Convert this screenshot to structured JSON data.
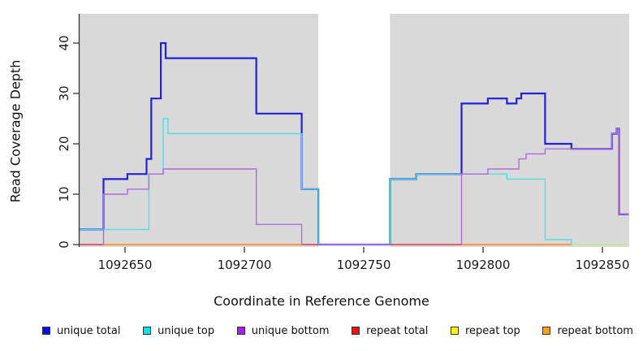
{
  "chart_data": {
    "type": "line",
    "subtype": "step",
    "title": "",
    "xlabel": "Coordinate in Reference Genome",
    "ylabel": "Read Coverage Depth",
    "xlim": [
      1092631,
      1092861
    ],
    "ylim": [
      0,
      45.8
    ],
    "x_ticks": [
      1092650,
      1092700,
      1092750,
      1092800,
      1092850
    ],
    "y_ticks": [
      0,
      10,
      20,
      30,
      40
    ],
    "grid": false,
    "plot_bg": "#d9d9d9",
    "axis_color": "#333333",
    "gap_band": {
      "x0": 1092731,
      "x1": 1092761,
      "color": "#ffffff"
    },
    "series": [
      {
        "name": "unique total",
        "color": "#2222dd",
        "width": 2.2,
        "runs": [
          [
            1092631,
            1092641,
            3
          ],
          [
            1092641,
            1092651,
            13
          ],
          [
            1092651,
            1092659,
            14
          ],
          [
            1092659,
            1092661,
            17
          ],
          [
            1092661,
            1092665,
            29
          ],
          [
            1092665,
            1092667,
            40
          ],
          [
            1092667,
            1092705,
            37
          ],
          [
            1092705,
            1092724,
            26
          ],
          [
            1092724,
            1092731,
            11
          ],
          [
            1092731,
            1092761,
            0
          ],
          [
            1092761,
            1092772,
            13
          ],
          [
            1092772,
            1092791,
            14
          ],
          [
            1092791,
            1092802,
            28
          ],
          [
            1092802,
            1092810,
            29
          ],
          [
            1092810,
            1092814,
            28
          ],
          [
            1092814,
            1092816,
            29
          ],
          [
            1092816,
            1092826,
            30
          ],
          [
            1092826,
            1092837,
            20
          ],
          [
            1092837,
            1092854,
            19
          ],
          [
            1092854,
            1092856,
            22
          ],
          [
            1092856,
            1092857,
            23
          ],
          [
            1092857,
            1092861,
            6
          ]
        ]
      },
      {
        "name": "unique top",
        "color": "#4cdfec",
        "width": 1.4,
        "runs": [
          [
            1092631,
            1092660,
            3
          ],
          [
            1092660,
            1092666,
            14
          ],
          [
            1092666,
            1092668,
            25
          ],
          [
            1092668,
            1092724,
            22
          ],
          [
            1092724,
            1092731,
            11
          ],
          [
            1092731,
            1092761,
            0
          ],
          [
            1092761,
            1092772,
            13
          ],
          [
            1092772,
            1092810,
            14
          ],
          [
            1092810,
            1092826,
            13
          ],
          [
            1092826,
            1092837,
            1
          ],
          [
            1092837,
            1092861,
            0
          ]
        ]
      },
      {
        "name": "unique bottom",
        "color": "#b469e0",
        "width": 1.4,
        "runs": [
          [
            1092631,
            1092641,
            0
          ],
          [
            1092641,
            1092651,
            10
          ],
          [
            1092651,
            1092660,
            11
          ],
          [
            1092660,
            1092666,
            14
          ],
          [
            1092666,
            1092705,
            15
          ],
          [
            1092705,
            1092724,
            4
          ],
          [
            1092724,
            1092791,
            0
          ],
          [
            1092791,
            1092802,
            14
          ],
          [
            1092802,
            1092815,
            15
          ],
          [
            1092815,
            1092818,
            17
          ],
          [
            1092818,
            1092826,
            18
          ],
          [
            1092826,
            1092854,
            19
          ],
          [
            1092854,
            1092856,
            22
          ],
          [
            1092856,
            1092857,
            23
          ],
          [
            1092857,
            1092861,
            6
          ]
        ]
      },
      {
        "name": "repeat total",
        "color": "#e04b55",
        "width": 1.4,
        "runs": [
          [
            1092631,
            1092731,
            0
          ],
          [
            1092761,
            1092837,
            0
          ]
        ]
      },
      {
        "name": "repeat top",
        "color": "#eff04a",
        "width": 1.1,
        "runs": [
          [
            1092641,
            1092724,
            0
          ],
          [
            1092791,
            1092861,
            0
          ]
        ]
      },
      {
        "name": "repeat bottom",
        "color": "#ff9d26",
        "width": 1.5,
        "runs": [
          [
            1092641,
            1092724,
            0
          ],
          [
            1092791,
            1092837,
            0
          ]
        ]
      }
    ],
    "legend": [
      {
        "label": "unique total",
        "color": "#0d0dee"
      },
      {
        "label": "unique top",
        "color": "#00e6ee"
      },
      {
        "label": "unique bottom",
        "color": "#a020f0"
      },
      {
        "label": "repeat total",
        "color": "#ee1111"
      },
      {
        "label": "repeat top",
        "color": "#fdfd00"
      },
      {
        "label": "repeat bottom",
        "color": "#ffa010"
      }
    ]
  }
}
